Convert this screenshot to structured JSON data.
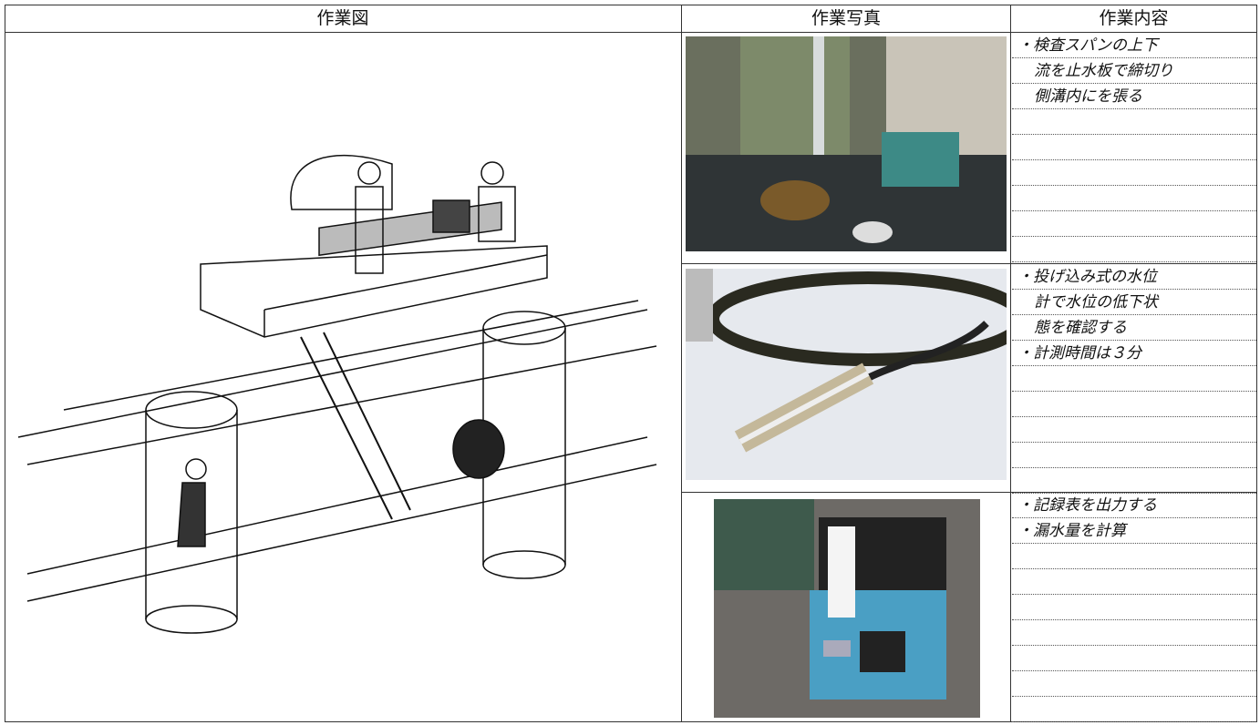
{
  "header": {
    "columns": [
      "作業図",
      "作業写真",
      "作業内容"
    ]
  },
  "steps": [
    {
      "lines": [
        "・検査スパンの上下",
        "流を止水板で締切り",
        "側溝内にを張る"
      ]
    },
    {
      "lines": [
        "・投げ込み式の水位",
        "計で水位の低下状",
        "態を確認する",
        "・計測時間は３分"
      ]
    },
    {
      "lines": [
        "・記録表を出力する",
        "・漏水量を計算"
      ]
    }
  ]
}
